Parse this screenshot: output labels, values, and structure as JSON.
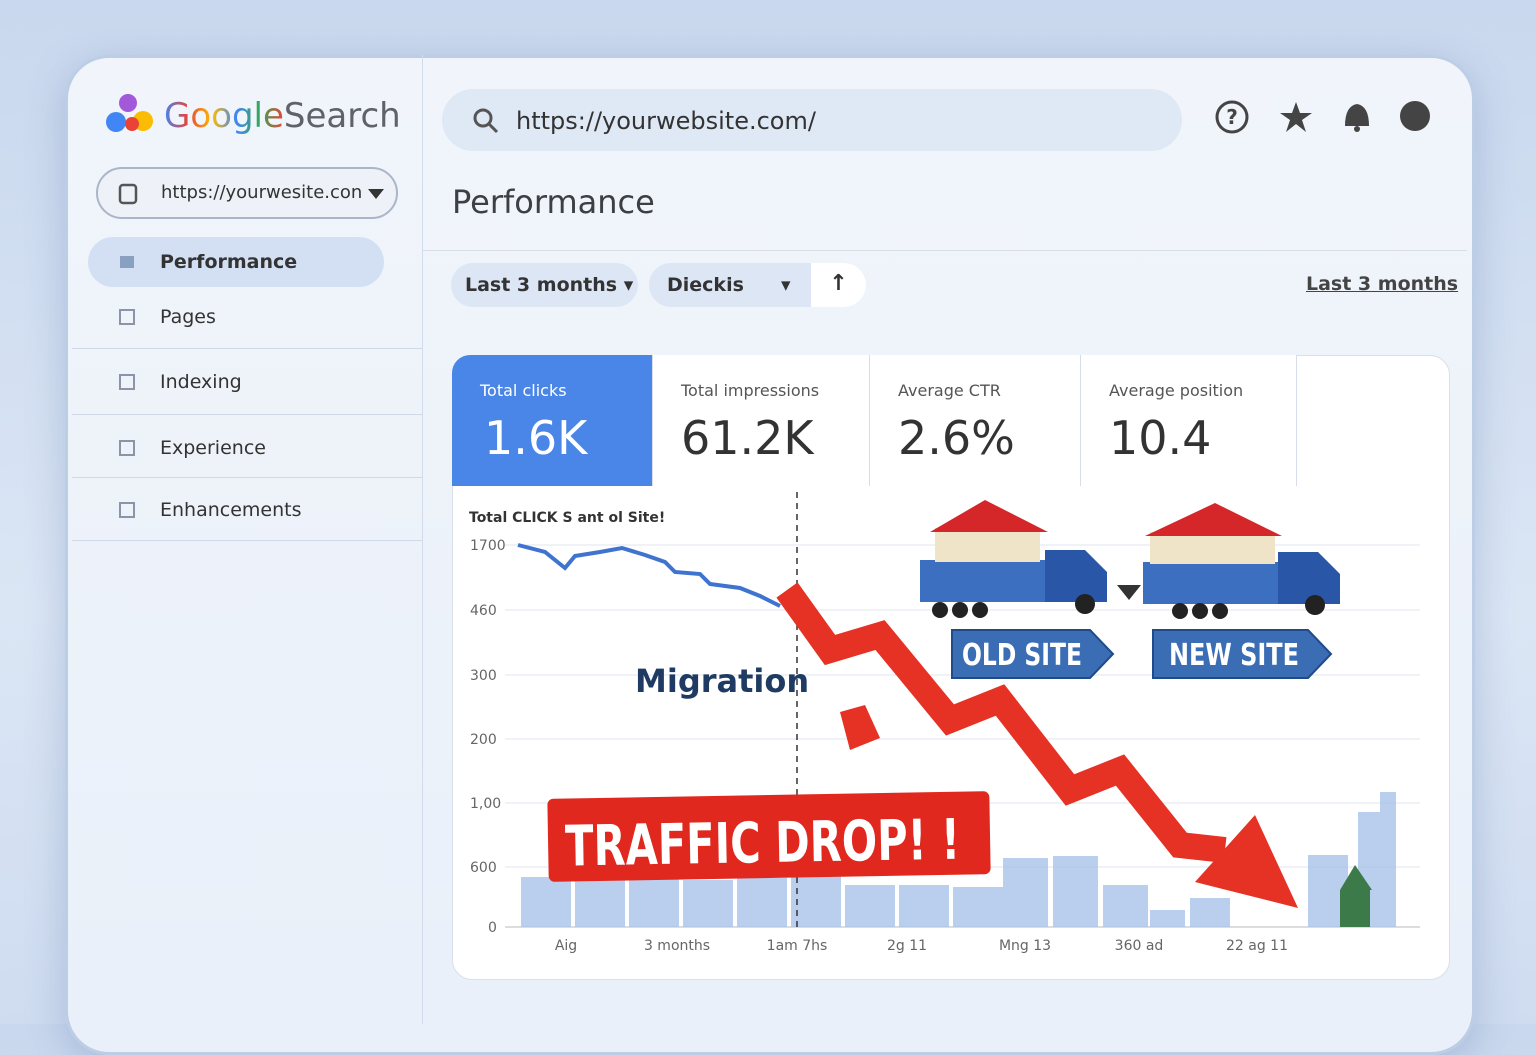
{
  "header": {
    "logo": {
      "brand": "Google",
      "product": "Search"
    },
    "search_url": "https://yourwebsite.com/"
  },
  "sidebar": {
    "site_selector": "https://yourwesite.con",
    "nav": [
      "Performance",
      "Pages",
      "Indexing",
      "Experience",
      "Enhancements"
    ]
  },
  "main": {
    "title": "Performance",
    "filters": [
      "Last 3 months",
      "Dieckis"
    ],
    "date_link": "Last 3 months",
    "metrics": [
      {
        "label": "Total clicks",
        "value": "1.6K"
      },
      {
        "label": "Total impressions",
        "value": "61.2K"
      },
      {
        "label": "Average CTR",
        "value": "2.6%"
      },
      {
        "label": "Average position",
        "value": "10.4"
      }
    ],
    "chart": {
      "title": "Total CLICK S ant ol Site!",
      "y_labels": [
        "1700",
        "460",
        "300",
        "200",
        "1,00",
        "600",
        "0"
      ],
      "x_labels": [
        "Aig",
        "3 months",
        "1am 7hs",
        "2g 11",
        "Mng 13",
        "360 ad",
        "22 ag 11"
      ],
      "annotations": {
        "migration": "Migration",
        "old_site": "OLD SITE",
        "new_site": "NEW SITE",
        "alert": "TRAFFIC DROP! !"
      }
    }
  }
}
